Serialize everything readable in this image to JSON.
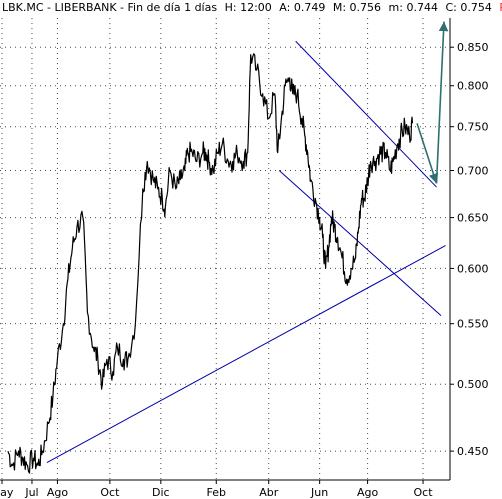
{
  "header": {
    "title": "LBK.MC - LIBERBANK - Fin de día 1 días",
    "stats": [
      {
        "label": "H:",
        "value": "12:00"
      },
      {
        "label": "A:",
        "value": "0.749"
      },
      {
        "label": "M:",
        "value": "0.756"
      },
      {
        "label": "m:",
        "value": "0.744"
      },
      {
        "label": "C:",
        "value": "0.754"
      }
    ],
    "mark": "P"
  },
  "colors": {
    "background": "#ffffff",
    "price": "#000000",
    "trendline": "#0000aa",
    "arrow": "#2f6f6f",
    "grid": "#000000",
    "mark": "#ff2020"
  },
  "chart_data": {
    "type": "line",
    "series": [
      {
        "x": [
          0,
          0.3,
          0.7,
          1,
          1.3,
          1.7,
          2,
          2.3,
          2.7,
          3,
          3.3,
          3.7,
          4,
          4.3,
          4.6,
          5,
          5.3,
          5.7,
          6,
          6.3,
          6.6,
          7,
          7.3,
          7.7,
          8,
          8.5,
          9,
          9.3,
          9.7,
          10,
          10.3,
          10.5,
          10.8,
          11.2,
          11.5,
          11.8,
          12,
          12.3,
          12.6,
          13,
          13.2,
          13.4,
          13.7,
          14,
          14.3,
          14.7,
          15,
          15.3,
          15.7,
          16,
          16.2,
          16.6,
          17,
          17.4,
          17.8,
          18,
          18.2,
          18.5,
          18.8,
          19,
          19.3,
          19.6,
          19.8,
          20,
          20.2,
          20.5,
          20.8,
          21,
          21.2,
          21.4,
          21.6,
          21.8,
          22,
          22.3,
          22.6,
          22.9,
          23.2,
          23.4,
          23.6,
          23.8,
          24,
          24.2,
          24.5,
          24.8,
          25,
          25.2,
          25.5,
          25.7,
          26,
          26.2,
          26.5,
          26.8,
          27
        ],
        "y": [
          0.45,
          0.44,
          0.45,
          0.445,
          0.44,
          0.445,
          0.44,
          0.45,
          0.47,
          0.49,
          0.52,
          0.55,
          0.59,
          0.62,
          0.64,
          0.65,
          0.56,
          0.53,
          0.52,
          0.5,
          0.52,
          0.51,
          0.53,
          0.52,
          0.52,
          0.55,
          0.68,
          0.71,
          0.69,
          0.68,
          0.67,
          0.66,
          0.7,
          0.68,
          0.69,
          0.7,
          0.72,
          0.72,
          0.71,
          0.72,
          0.72,
          0.71,
          0.7,
          0.72,
          0.73,
          0.71,
          0.71,
          0.72,
          0.71,
          0.72,
          0.84,
          0.82,
          0.79,
          0.76,
          0.79,
          0.72,
          0.75,
          0.8,
          0.81,
          0.79,
          0.79,
          0.76,
          0.74,
          0.72,
          0.69,
          0.67,
          0.65,
          0.63,
          0.6,
          0.62,
          0.65,
          0.64,
          0.63,
          0.61,
          0.59,
          0.6,
          0.61,
          0.64,
          0.67,
          0.67,
          0.69,
          0.71,
          0.71,
          0.72,
          0.72,
          0.72,
          0.7,
          0.71,
          0.73,
          0.74,
          0.75,
          0.74,
          0.754
        ]
      }
    ],
    "x_tick_labels": [
      "May",
      "Jul",
      "Ago",
      "Oct",
      "Dic",
      "Feb",
      "Abr",
      "Jun",
      "Ago",
      "Oct"
    ],
    "y_tick_labels": [
      "0.850",
      "0.800",
      "0.750",
      "0.700",
      "0.650",
      "0.600",
      "0.550",
      "0.500",
      "0.450"
    ],
    "y_ticks": [
      0.85,
      0.8,
      0.75,
      0.7,
      0.65,
      0.6,
      0.55,
      0.5,
      0.45
    ],
    "ylim": [
      0.43,
      0.89
    ],
    "yscale": "log",
    "xlim": [
      0,
      29.5
    ],
    "x_ticks": [
      -0.4,
      1.6,
      3.3,
      6.8,
      10.2,
      13.9,
      17.4,
      20.8,
      24.0,
      27.7
    ],
    "grid": true,
    "trendlines": [
      {
        "from": [
          2.6,
          0.442
        ],
        "to": [
          29.2,
          0.622
        ]
      },
      {
        "from": [
          19.2,
          0.858
        ],
        "to": [
          28.6,
          0.682
        ]
      },
      {
        "from": [
          18.1,
          0.7
        ],
        "to": [
          28.9,
          0.557
        ]
      }
    ],
    "arrows": [
      {
        "from": [
          27.3,
          0.754
        ],
        "to": [
          28.6,
          0.686
        ]
      },
      {
        "from": [
          28.6,
          0.686
        ],
        "to": [
          29.1,
          0.885
        ]
      }
    ]
  }
}
